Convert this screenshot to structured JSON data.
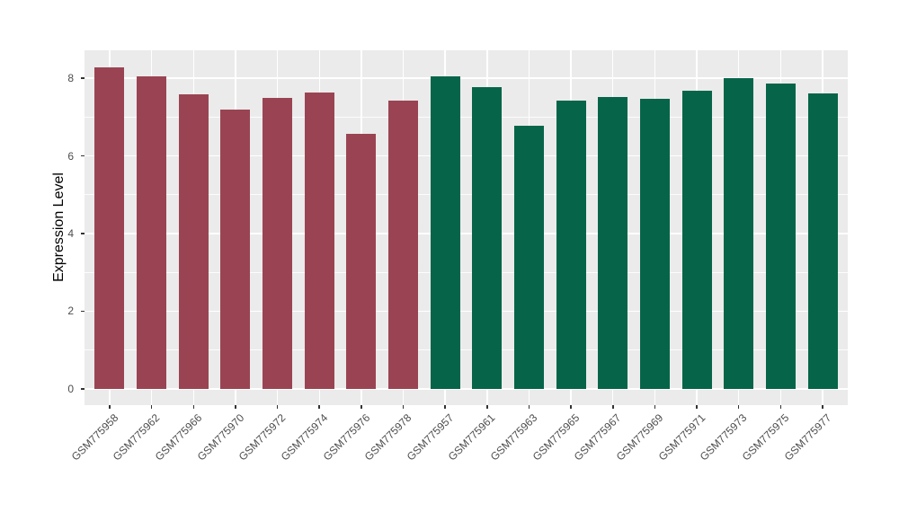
{
  "chart_data": {
    "type": "bar",
    "title": "",
    "ylabel": "Expression Level",
    "xlabel": "",
    "ylim": [
      -0.42,
      8.72
    ],
    "yticks": [
      0,
      2,
      4,
      6,
      8
    ],
    "yminor": [
      1,
      3,
      5,
      7
    ],
    "grid": "on",
    "legend": "none",
    "panel_bg": "#EBEBEB",
    "grid_color": "#FFFFFF",
    "tick_color": "#333333",
    "axis_text_color": "#4D4D4D",
    "axis_title_color": "#000000",
    "categories": [
      "GSM775958",
      "GSM775962",
      "GSM775966",
      "GSM775970",
      "GSM775972",
      "GSM775974",
      "GSM775976",
      "GSM775978",
      "GSM775957",
      "GSM775961",
      "GSM775963",
      "GSM775965",
      "GSM775967",
      "GSM775969",
      "GSM775971",
      "GSM775973",
      "GSM775975",
      "GSM775977"
    ],
    "values": [
      8.29,
      8.05,
      7.59,
      7.19,
      7.49,
      7.63,
      6.57,
      7.42,
      8.06,
      7.77,
      6.78,
      7.42,
      7.52,
      7.47,
      7.68,
      8.0,
      7.87,
      7.61
    ],
    "groups": [
      "g1",
      "g1",
      "g1",
      "g1",
      "g1",
      "g1",
      "g1",
      "g1",
      "g2",
      "g2",
      "g2",
      "g2",
      "g2",
      "g2",
      "g2",
      "g2",
      "g2",
      "g2"
    ],
    "group_colors": {
      "g1": "#9A4453",
      "g2": "#066549"
    }
  }
}
